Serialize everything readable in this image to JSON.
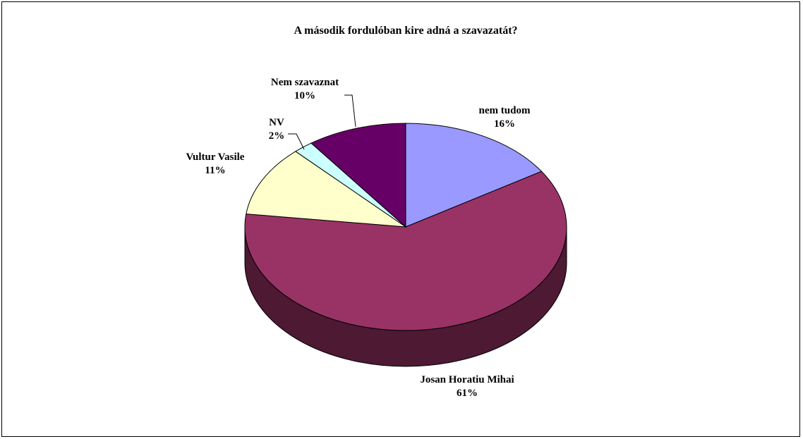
{
  "chart_data": {
    "type": "pie",
    "title": "A második fordulóban kire adná a szavazatát?",
    "three_d": true,
    "slices": [
      {
        "name": "nem tudom",
        "value": 16,
        "label": "16%",
        "color": "#9999ff",
        "side_color": "#6666bb"
      },
      {
        "name": "Josan Horatiu Mihai",
        "value": 61,
        "label": "61%",
        "color": "#993366",
        "side_color": "#4d1933"
      },
      {
        "name": "Vultur Vasile",
        "value": 11,
        "label": "11%",
        "color": "#ffffcc",
        "side_color": "#bdbd99"
      },
      {
        "name": "NV",
        "value": 2,
        "label": "2%",
        "color": "#ccffff",
        "side_color": "#99bdbd"
      },
      {
        "name": "Nem szavaznat",
        "value": 10,
        "label": "10%",
        "color": "#660066",
        "side_color": "#330033"
      }
    ]
  }
}
